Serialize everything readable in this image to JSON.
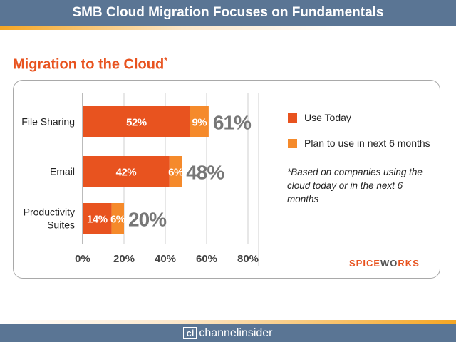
{
  "header": {
    "title": "SMB Cloud Migration Focuses on Fundamentals"
  },
  "subtitle": "Migration to the Cloud",
  "subtitle_mark": "*",
  "chart_data": {
    "type": "bar",
    "orientation": "horizontal",
    "stacked": true,
    "categories": [
      "File Sharing",
      "Email",
      "Productivity Suites"
    ],
    "series": [
      {
        "name": "Use Today",
        "values": [
          52,
          42,
          14
        ],
        "labels": [
          "52%",
          "42%",
          "14%"
        ],
        "color": "#e8531f"
      },
      {
        "name": "Plan to use in next 6 months",
        "values": [
          9,
          6,
          6
        ],
        "labels": [
          "9%",
          "6%",
          "6%"
        ],
        "color": "#f58a2b"
      }
    ],
    "totals": [
      "61%",
      "48%",
      "20%"
    ],
    "xlim": [
      0,
      80
    ],
    "xticks": [
      0,
      20,
      40,
      60,
      80
    ],
    "xtick_labels": [
      "0%",
      "20%",
      "40%",
      "60%",
      "80%"
    ],
    "grid": true,
    "legend_position": "right"
  },
  "note": "*Based on companies using the cloud today or in the next 6 months",
  "brand": {
    "part1": "SPICE",
    "part2": "W",
    "part3": "RKS"
  },
  "footer": {
    "badge": "ci",
    "text": "channelinsider"
  }
}
